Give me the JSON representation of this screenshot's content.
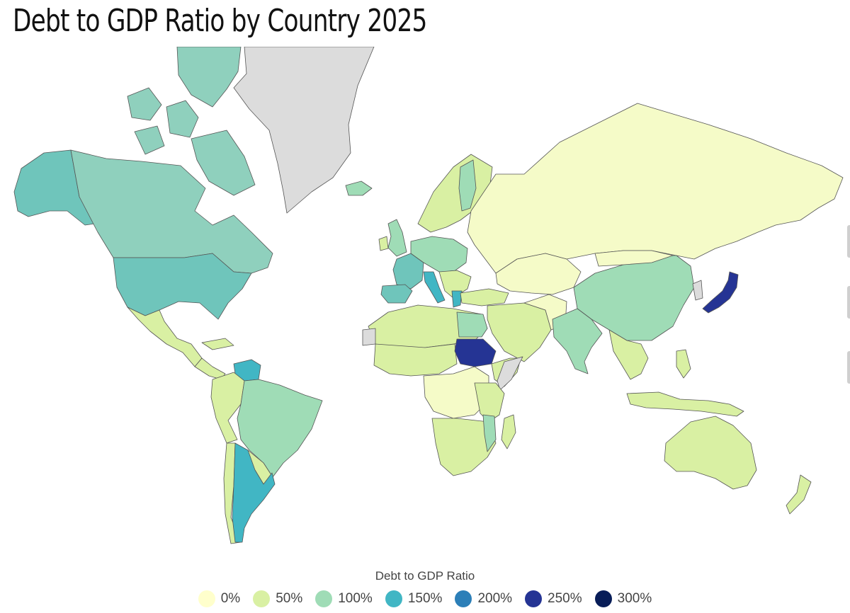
{
  "title": "Debt to GDP Ratio by Country 2025",
  "legend": {
    "title": "Debt to GDP Ratio",
    "items": [
      {
        "label": "0%",
        "color": "#ffffcc"
      },
      {
        "label": "50%",
        "color": "#d9f0a3"
      },
      {
        "label": "100%",
        "color": "#9fdcb6"
      },
      {
        "label": "150%",
        "color": "#41b6c4"
      },
      {
        "label": "200%",
        "color": "#2c7fb8"
      },
      {
        "label": "250%",
        "color": "#253494"
      },
      {
        "label": "300%",
        "color": "#081d58"
      }
    ]
  },
  "colors": {
    "no_data": "#dcdcdc",
    "band_low": "#f5fbc8",
    "band_mid": "#d9f0a3",
    "band_high": "#9fdcb6",
    "north_america": "#8fd0bd",
    "usa": "#6fc5bb",
    "band_150": "#41b6c4",
    "band_250": "#253494"
  }
}
